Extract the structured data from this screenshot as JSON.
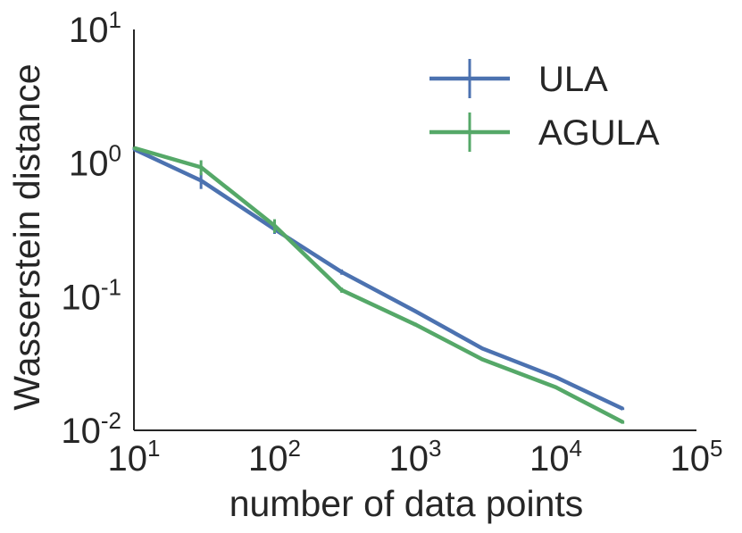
{
  "chart_data": {
    "type": "line",
    "title": "",
    "xlabel": "number of data points",
    "ylabel": "Wasserstein distance",
    "xscale": "log",
    "yscale": "log",
    "xlim": [
      10,
      100000
    ],
    "ylim": [
      0.01,
      10
    ],
    "x_ticks": [
      {
        "value": 10,
        "base": "10",
        "exp": "1"
      },
      {
        "value": 100,
        "base": "10",
        "exp": "2"
      },
      {
        "value": 1000,
        "base": "10",
        "exp": "3"
      },
      {
        "value": 10000,
        "base": "10",
        "exp": "4"
      },
      {
        "value": 100000,
        "base": "10",
        "exp": "5"
      }
    ],
    "y_ticks": [
      {
        "value": 0.01,
        "base": "10",
        "exp": "-2"
      },
      {
        "value": 0.1,
        "base": "10",
        "exp": "-1"
      },
      {
        "value": 1,
        "base": "10",
        "exp": "0"
      },
      {
        "value": 10,
        "base": "10",
        "exp": "1"
      }
    ],
    "x": [
      10,
      30,
      100,
      300,
      1000,
      3000,
      10000,
      30000
    ],
    "series": [
      {
        "name": "ULA",
        "color": "#4c72b0",
        "values": [
          1.27,
          0.74,
          0.32,
          0.153,
          0.078,
          0.041,
          0.025,
          0.0145
        ],
        "errors": [
          0.0,
          0.1,
          0.025,
          0.007,
          0.002,
          0.001,
          0.0005,
          0.0003
        ]
      },
      {
        "name": "AGULA",
        "color": "#55a868",
        "values": [
          1.3,
          0.93,
          0.34,
          0.112,
          0.062,
          0.034,
          0.021,
          0.0115
        ],
        "errors": [
          0.0,
          0.12,
          0.04,
          0.005,
          0.002,
          0.001,
          0.0005,
          0.0003
        ]
      }
    ],
    "legend_position": "top-right",
    "grid": false
  }
}
